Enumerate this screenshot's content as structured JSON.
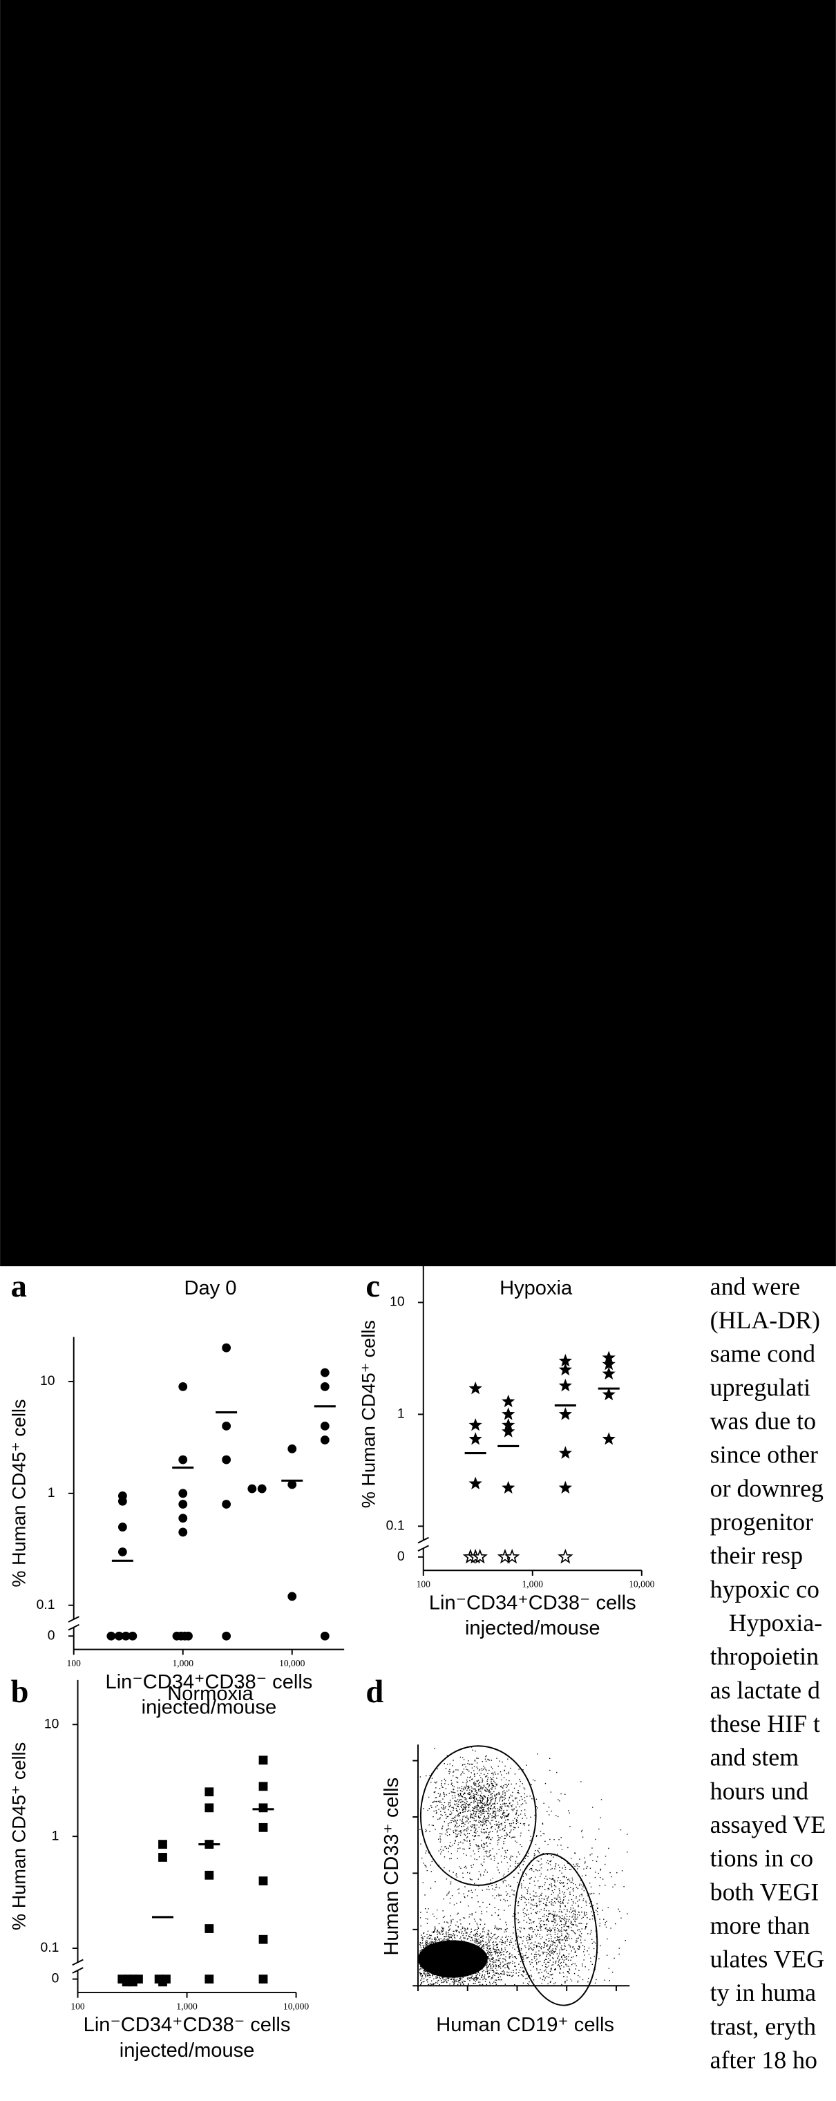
{
  "chart_data": [
    {
      "type": "scatter",
      "panel": "a",
      "title": "Day 0",
      "ylabel": "% Human CD45⁺ cells",
      "xlabel": [
        "Lin⁻CD34⁺CD38⁻ cells",
        "injected/mouse"
      ],
      "log_x": true,
      "log_y": true,
      "y_break": true,
      "marker": "circle",
      "color": "#000000",
      "xlim": [
        100,
        30000
      ],
      "ylim": [
        0,
        25
      ],
      "xticks": [
        100,
        {
          "value": 1000,
          "label": "1,000"
        },
        {
          "value": 10000,
          "label": "10,000"
        }
      ],
      "yticks": [
        0,
        0.1,
        1,
        10
      ],
      "x": [
        280,
        280,
        280,
        280,
        220,
        260,
        300,
        346,
        1000,
        1000,
        1000,
        1000,
        1000,
        1000,
        880,
        960,
        1040,
        1120,
        2500,
        2500,
        2500,
        2500,
        2500,
        4300,
        5300,
        10000,
        10000,
        10000,
        20000,
        20000,
        20000,
        20000,
        20000
      ],
      "values": [
        0.95,
        0.85,
        0.5,
        0.3,
        0,
        0,
        0,
        0,
        9,
        2,
        1,
        0.8,
        0.6,
        0.45,
        0,
        0,
        0,
        0,
        20,
        4,
        2,
        0.8,
        0,
        1.1,
        1.1,
        2.5,
        1.2,
        0.12,
        12,
        9,
        4,
        3,
        0
      ],
      "means": {
        "x": [
          280,
          1000,
          2500,
          10000,
          20000
        ],
        "values": [
          0.25,
          1.7,
          5.3,
          1.3,
          6
        ]
      }
    },
    {
      "type": "scatter",
      "panel": "c",
      "title": "Hypoxia",
      "ylabel": "% Human CD45⁺ cells",
      "xlabel": [
        "Lin⁻CD34⁺CD38⁻ cells",
        "injected/mouse"
      ],
      "log_x": true,
      "log_y": true,
      "y_break": true,
      "marker": "star",
      "open_zero": true,
      "color": "#000000",
      "xlim": [
        100,
        10000
      ],
      "ylim": [
        0,
        25
      ],
      "xticks": [
        100,
        {
          "value": 1000,
          "label": "1,000"
        },
        {
          "value": 10000,
          "label": "10,000"
        }
      ],
      "yticks": [
        0,
        0.1,
        1,
        10
      ],
      "x": [
        300,
        300,
        300,
        300,
        270,
        300,
        330,
        600,
        600,
        600,
        600,
        600,
        560,
        650,
        2000,
        2000,
        2000,
        2000,
        2000,
        2000,
        2000,
        5000,
        5000,
        5000,
        5000,
        5000
      ],
      "values": [
        1.7,
        0.8,
        0.6,
        0.24,
        0,
        0,
        0,
        1.3,
        1.0,
        0.8,
        0.7,
        0.22,
        0,
        0,
        3,
        2.5,
        1.8,
        1.0,
        0.45,
        0.22,
        0,
        3.2,
        2.8,
        2.3,
        1.5,
        0.6
      ],
      "means": {
        "x": [
          300,
          600,
          2000,
          5000
        ],
        "values": [
          0.45,
          0.52,
          1.2,
          1.7
        ]
      }
    },
    {
      "type": "scatter",
      "panel": "b",
      "title": "Normoxia",
      "ylabel": "% Human CD45⁺ cells",
      "xlabel": [
        "Lin⁻CD34⁺CD38⁻ cells",
        "injected/mouse"
      ],
      "log_x": true,
      "log_y": true,
      "y_break": true,
      "marker": "square",
      "color": "#000000",
      "xlim": [
        100,
        10000
      ],
      "ylim": [
        0,
        25
      ],
      "xticks": [
        100,
        {
          "value": 1000,
          "label": "1,000"
        },
        {
          "value": 10000,
          "label": "10,000"
        }
      ],
      "yticks": [
        0,
        0.1,
        1,
        10
      ],
      "x": [
        280,
        320,
        255,
        290,
        325,
        360,
        600,
        600,
        600,
        555,
        645,
        1600,
        1600,
        1600,
        1600,
        1600,
        1600,
        5000,
        5000,
        5000,
        5000,
        5000,
        5000,
        5000
      ],
      "values": [
        0.05,
        0.05,
        0,
        0,
        0,
        0,
        0.85,
        0.65,
        0.05,
        0,
        0,
        2.5,
        1.8,
        0.85,
        0.45,
        0.15,
        0,
        4.8,
        2.8,
        1.8,
        1.2,
        0.4,
        0.12,
        0
      ],
      "means": {
        "x": [
          600,
          1600,
          5000
        ],
        "values": [
          0.19,
          0.85,
          1.75
        ]
      }
    }
  ],
  "figure_d": {
    "panel": "d",
    "xlabel": "Human CD19⁺ cells",
    "ylabel": "Human CD33⁺ cells"
  },
  "body_text": {
    "paragraphs": [
      [
        "and were",
        "(HLA-DR)",
        "same cond",
        "upregulati",
        "was due to",
        "since other",
        "or downreg",
        "progenitor",
        "their resp",
        "hypoxic co"
      ],
      [
        "Hypoxia-",
        "thropoietin",
        "as lactate d",
        "these HIF t",
        "and stem",
        "hours und",
        "assayed VE",
        "tions in co",
        "both VEGI",
        "more than",
        "ulates VEG",
        "ty in huma",
        "trast, eryth",
        "after 18 ho"
      ]
    ]
  }
}
